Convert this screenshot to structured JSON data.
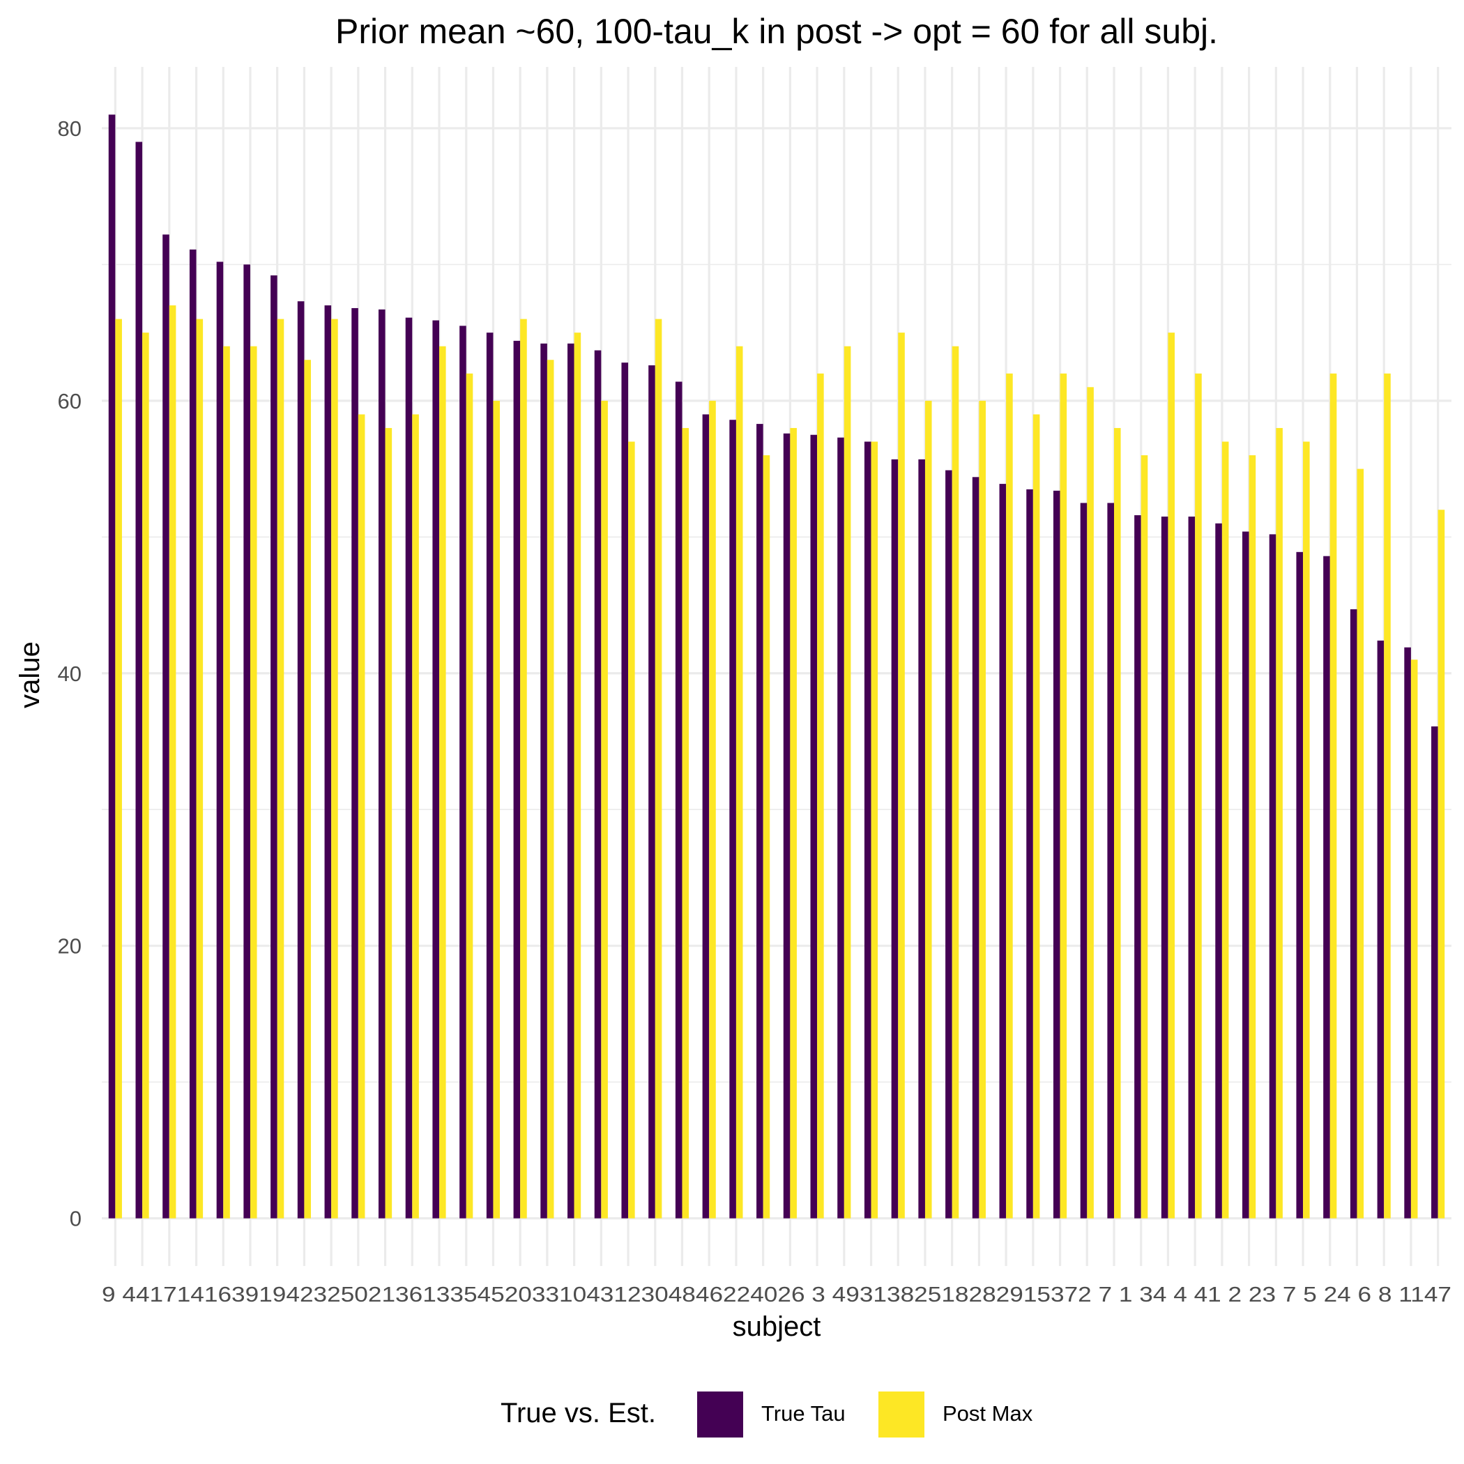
{
  "chart_data": {
    "type": "bar",
    "title": "Prior mean  ~60, 100-tau_k in post -> opt = 60 for all subj.",
    "xlabel": "subject",
    "ylabel": "value",
    "ylim": [
      -3.5,
      84.5
    ],
    "yticks": [
      0,
      20,
      40,
      60,
      80
    ],
    "yminor": [
      10,
      30,
      50,
      70
    ],
    "grid": true,
    "legend": {
      "title": "True vs. Est.",
      "placement": "bottom"
    },
    "categories": [
      "9",
      "44",
      "17",
      "14",
      "16",
      "39",
      "19",
      "42",
      "32",
      "50",
      "21",
      "36",
      "13",
      "35",
      "45",
      "20",
      "33",
      "10",
      "43",
      "12",
      "30",
      "48",
      "46",
      "22",
      "40",
      "26",
      "3",
      "49",
      "31",
      "38",
      "25",
      "18",
      "28",
      "29",
      "15",
      "37",
      "27",
      "1",
      "34",
      "4",
      "41",
      "2",
      "23",
      "7",
      "5",
      "24",
      "6",
      "8",
      "11",
      "47"
    ],
    "tick_labels": "9 44171416391942325021361335452033104312304846224026 3 4931382518282915372 7 1 34 4 41 2 23 7 5 24 6 8 1147",
    "series": [
      {
        "name": "True Tau",
        "color": "#440154",
        "values": [
          81,
          79,
          72.2,
          71.1,
          70.2,
          70.0,
          69.2,
          67.3,
          67.0,
          66.8,
          66.7,
          66.1,
          65.9,
          65.5,
          65.0,
          64.4,
          64.2,
          64.2,
          63.7,
          62.8,
          62.6,
          61.4,
          59.0,
          58.6,
          58.3,
          57.6,
          57.5,
          57.3,
          57.0,
          55.7,
          55.7,
          54.9,
          54.4,
          53.9,
          53.5,
          53.4,
          52.5,
          52.5,
          51.6,
          51.5,
          51.5,
          51.0,
          50.4,
          50.2,
          48.9,
          48.6,
          44.7,
          42.4,
          41.9,
          36.1
        ]
      },
      {
        "name": "Post Max",
        "color": "#FDE725",
        "values": [
          66,
          65,
          67,
          66,
          64,
          64,
          66,
          63,
          66,
          59,
          58,
          59,
          64,
          62,
          60,
          66,
          63,
          65,
          60,
          57,
          66,
          58,
          60,
          64,
          56,
          58,
          62,
          64,
          57,
          65,
          60,
          64,
          60,
          62,
          59,
          62,
          61,
          58,
          56,
          65,
          62,
          57,
          56,
          58,
          57,
          62,
          55,
          62,
          41,
          52
        ]
      }
    ]
  }
}
